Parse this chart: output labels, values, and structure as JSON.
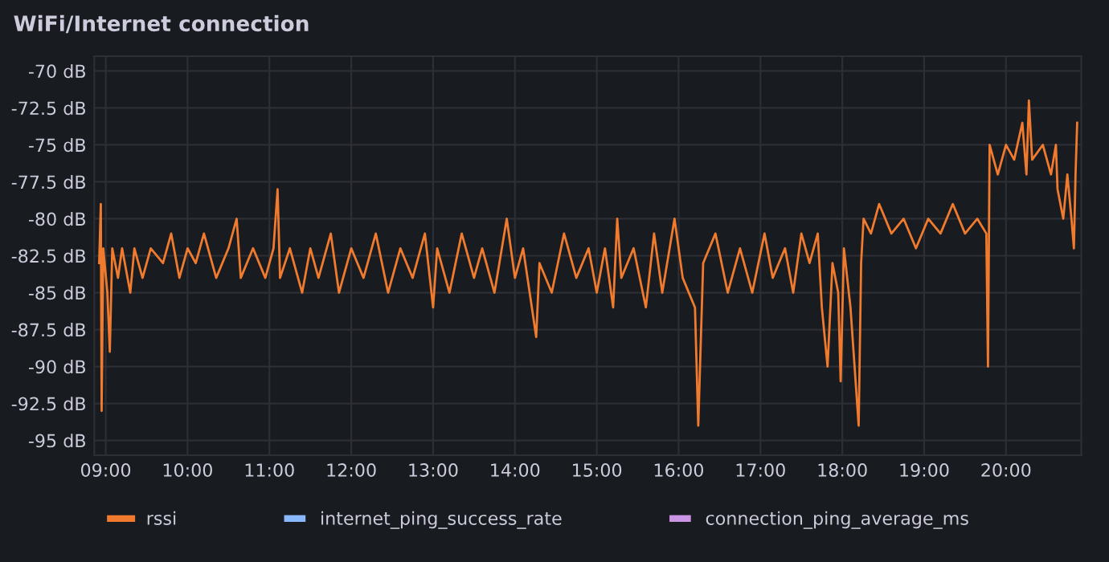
{
  "chart_data": {
    "type": "line",
    "title": "WiFi/Internet connection",
    "x": [
      8.92,
      8.94,
      8.95,
      8.97,
      9.02,
      9.05,
      9.08,
      9.15,
      9.2,
      9.3,
      9.35,
      9.45,
      9.55,
      9.7,
      9.8,
      9.9,
      10.0,
      10.1,
      10.2,
      10.35,
      10.5,
      10.6,
      10.65,
      10.8,
      10.95,
      11.05,
      11.1,
      11.13,
      11.25,
      11.4,
      11.5,
      11.6,
      11.75,
      11.85,
      12.0,
      12.15,
      12.3,
      12.45,
      12.6,
      12.75,
      12.9,
      13.0,
      13.05,
      13.2,
      13.35,
      13.5,
      13.6,
      13.75,
      13.9,
      14.0,
      14.1,
      14.26,
      14.3,
      14.45,
      14.6,
      14.75,
      14.9,
      15.0,
      15.1,
      15.2,
      15.25,
      15.3,
      15.45,
      15.6,
      15.7,
      15.8,
      15.95,
      16.05,
      16.2,
      16.24,
      16.3,
      16.45,
      16.6,
      16.75,
      16.9,
      17.05,
      17.15,
      17.3,
      17.4,
      17.5,
      17.6,
      17.7,
      17.75,
      17.82,
      17.88,
      17.95,
      17.98,
      18.02,
      18.1,
      18.2,
      18.23,
      18.26,
      18.35,
      18.45,
      18.6,
      18.75,
      18.9,
      19.05,
      19.2,
      19.35,
      19.5,
      19.65,
      19.76,
      19.78,
      19.8,
      19.9,
      20.0,
      20.1,
      20.2,
      20.25,
      20.28,
      20.32,
      20.45,
      20.55,
      20.61,
      20.63,
      20.7,
      20.75,
      20.8,
      20.83,
      20.85,
      20.87
    ],
    "series": [
      {
        "name": "rssi",
        "color": "#f07b2e",
        "values": [
          -83,
          -79,
          -93,
          -82,
          -85,
          -89,
          -82,
          -84,
          -82,
          -85,
          -82,
          -84,
          -82,
          -83,
          -81,
          -84,
          -82,
          -83,
          -81,
          -84,
          -82,
          -80,
          -84,
          -82,
          -84,
          -82,
          -78,
          -84,
          -82,
          -85,
          -82,
          -84,
          -81,
          -85,
          -82,
          -84,
          -81,
          -85,
          -82,
          -84,
          -81,
          -86,
          -82,
          -85,
          -81,
          -84,
          -82,
          -85,
          -80,
          -84,
          -82,
          -88,
          -83,
          -85,
          -81,
          -84,
          -82,
          -85,
          -82,
          -86,
          -80,
          -84,
          -82,
          -86,
          -81,
          -85,
          -80,
          -84,
          -86,
          -94,
          -83,
          -81,
          -85,
          -82,
          -85,
          -81,
          -84,
          -82,
          -85,
          -81,
          -83,
          -81,
          -86,
          -90,
          -83,
          -85,
          -91,
          -82,
          -86,
          -94,
          -83,
          -80,
          -81,
          -79,
          -81,
          -80,
          -82,
          -80,
          -81,
          -79,
          -81,
          -80,
          -81,
          -90,
          -75,
          -77,
          -75,
          -76,
          -73.5,
          -77,
          -72,
          -76,
          -75,
          -77,
          -75,
          -78,
          -80,
          -77,
          -80,
          -82,
          -77,
          -73.5
        ]
      },
      {
        "name": "internet_ping_success_rate",
        "color": "#8ab8ff",
        "line_style": "dashed",
        "values": [
          null,
          null,
          null,
          null,
          null,
          null,
          null,
          null,
          null,
          null,
          null,
          null,
          null,
          null,
          null,
          null,
          null,
          null,
          null,
          null,
          null,
          null,
          null,
          null,
          null,
          null,
          null,
          null,
          null,
          null,
          null,
          null,
          null,
          null,
          null,
          null,
          null,
          null,
          null,
          null,
          null,
          null,
          null,
          null,
          null,
          null,
          null,
          null,
          null,
          null,
          null,
          null,
          null,
          null,
          null,
          null,
          null,
          null,
          null,
          null,
          null,
          null,
          null,
          null,
          null,
          null,
          null,
          null,
          null,
          null,
          null,
          null,
          null,
          null,
          null,
          null,
          null,
          null,
          null,
          null,
          null,
          null,
          null,
          null,
          null,
          null,
          null,
          null,
          null,
          null,
          null,
          null,
          null,
          null,
          null,
          null,
          null,
          null,
          null,
          null,
          null,
          null,
          null,
          null,
          null,
          null,
          null,
          null,
          null,
          null,
          null,
          null,
          null,
          null,
          null,
          null,
          null,
          null,
          null,
          null,
          null,
          null
        ]
      },
      {
        "name": "connection_ping_average_ms",
        "color": "#ca95e5",
        "line_style": "dashed",
        "values": [
          null,
          null,
          null,
          null,
          null,
          null,
          null,
          null,
          null,
          null,
          null,
          null,
          null,
          null,
          null,
          null,
          null,
          null,
          null,
          null,
          null,
          null,
          null,
          null,
          null,
          null,
          null,
          null,
          null,
          null,
          null,
          null,
          null,
          null,
          null,
          null,
          null,
          null,
          null,
          null,
          null,
          null,
          null,
          null,
          null,
          null,
          null,
          null,
          null,
          null,
          null,
          null,
          null,
          null,
          null,
          null,
          null,
          null,
          null,
          null,
          null,
          null,
          null,
          null,
          null,
          null,
          null,
          null,
          null,
          null,
          null,
          null,
          null,
          null,
          null,
          null,
          null,
          null,
          null,
          null,
          null,
          null,
          null,
          null,
          null,
          null,
          null,
          null,
          null,
          null,
          null,
          null,
          null,
          null,
          null,
          null,
          null,
          null,
          null,
          null,
          null,
          null,
          null,
          null,
          null,
          null,
          null,
          null,
          null,
          null,
          null,
          null,
          null,
          null,
          null,
          null,
          null,
          null,
          null,
          null,
          null,
          null
        ]
      }
    ],
    "xlim": [
      8.86,
      20.92
    ],
    "xticks": [
      {
        "value": 9,
        "label": "09:00"
      },
      {
        "value": 10,
        "label": "10:00"
      },
      {
        "value": 11,
        "label": "11:00"
      },
      {
        "value": 12,
        "label": "12:00"
      },
      {
        "value": 13,
        "label": "13:00"
      },
      {
        "value": 14,
        "label": "14:00"
      },
      {
        "value": 15,
        "label": "15:00"
      },
      {
        "value": 16,
        "label": "16:00"
      },
      {
        "value": 17,
        "label": "17:00"
      },
      {
        "value": 18,
        "label": "18:00"
      },
      {
        "value": 19,
        "label": "19:00"
      },
      {
        "value": 20,
        "label": "20:00"
      }
    ],
    "ylim": [
      -96,
      -69
    ],
    "yticks": [
      {
        "value": -70,
        "label": "-70 dB"
      },
      {
        "value": -72.5,
        "label": "-72.5 dB"
      },
      {
        "value": -75,
        "label": "-75 dB"
      },
      {
        "value": -77.5,
        "label": "-77.5 dB"
      },
      {
        "value": -80,
        "label": "-80 dB"
      },
      {
        "value": -82.5,
        "label": "-82.5 dB"
      },
      {
        "value": -85,
        "label": "-85 dB"
      },
      {
        "value": -87.5,
        "label": "-87.5 dB"
      },
      {
        "value": -90,
        "label": "-90 dB"
      },
      {
        "value": -92.5,
        "label": "-92.5 dB"
      },
      {
        "value": -95,
        "label": "-95 dB"
      }
    ],
    "grid": true,
    "legend": "bottom",
    "marker": "none",
    "line_style": "solid"
  }
}
